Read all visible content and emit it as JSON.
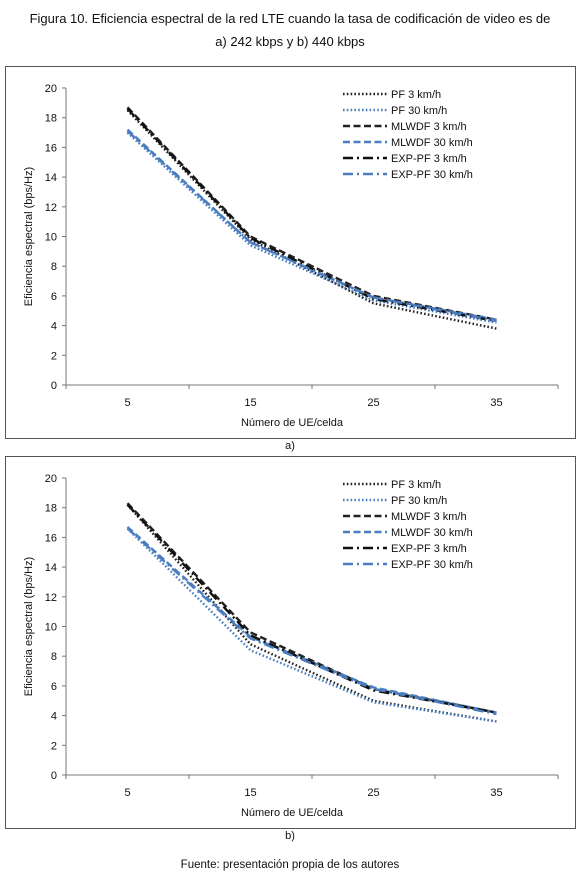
{
  "figure": {
    "title_line1": "Figura 10. Eficiencia espectral de la red LTE cuando la tasa de codificación de video es de",
    "title_line2": "a) 242 kbps y b) 440 kbps",
    "source": "Fuente: presentación propia de los autores"
  },
  "chart_data": [
    {
      "type": "line",
      "panel_label": "a)",
      "xlabel": "Número de UE/celda",
      "ylabel": "Eficiencia espectral (bps/Hz)",
      "x": [
        5,
        15,
        25,
        35
      ],
      "x_ticks": [
        "5",
        "15",
        "25",
        "35"
      ],
      "y_ticks": [
        "0",
        "2",
        "4",
        "6",
        "8",
        "10",
        "12",
        "14",
        "16",
        "18",
        "20"
      ],
      "ylim": [
        0,
        20
      ],
      "grid": false,
      "legend_position": "top-right",
      "series": [
        {
          "name": "PF 3 km/h",
          "values": [
            18.5,
            9.8,
            5.5,
            3.8
          ],
          "color": "#222222",
          "dash": "dotted"
        },
        {
          "name": "PF 30 km/h",
          "values": [
            17.0,
            9.4,
            5.7,
            4.2
          ],
          "color": "#4a7ec0",
          "dash": "dotted"
        },
        {
          "name": "MLWDF 3 km/h",
          "values": [
            18.7,
            10.0,
            6.0,
            4.4
          ],
          "color": "#222222",
          "dash": "dashed"
        },
        {
          "name": "MLWDF 30 km/h",
          "values": [
            17.2,
            9.6,
            5.9,
            4.4
          ],
          "color": "#4a7ec0",
          "dash": "dashed"
        },
        {
          "name": "EXP-PF 3 km/h",
          "values": [
            18.6,
            9.9,
            5.8,
            4.3
          ],
          "color": "#111111",
          "dash": "dashdot"
        },
        {
          "name": "EXP-PF 30 km/h",
          "values": [
            17.1,
            9.6,
            5.9,
            4.3
          ],
          "color": "#4a7ec0",
          "dash": "dashdot"
        }
      ]
    },
    {
      "type": "line",
      "panel_label": "b)",
      "xlabel": "Número de UE/celda",
      "ylabel": "Eficiencia espectral (bps/Hz)",
      "x": [
        5,
        15,
        25,
        35
      ],
      "x_ticks": [
        "5",
        "15",
        "25",
        "35"
      ],
      "y_ticks": [
        "0",
        "2",
        "4",
        "6",
        "8",
        "10",
        "12",
        "14",
        "16",
        "18",
        "20"
      ],
      "ylim": [
        0,
        20
      ],
      "grid": false,
      "legend_position": "top-right",
      "series": [
        {
          "name": "PF 3 km/h",
          "values": [
            18.2,
            8.8,
            5.0,
            3.6
          ],
          "color": "#222222",
          "dash": "dotted"
        },
        {
          "name": "PF 30 km/h",
          "values": [
            16.6,
            8.4,
            4.9,
            3.6
          ],
          "color": "#4a7ec0",
          "dash": "dotted"
        },
        {
          "name": "MLWDF 3 km/h",
          "values": [
            18.3,
            9.6,
            5.8,
            4.2
          ],
          "color": "#222222",
          "dash": "dashed"
        },
        {
          "name": "MLWDF 30 km/h",
          "values": [
            16.7,
            9.3,
            5.9,
            4.2
          ],
          "color": "#4a7ec0",
          "dash": "dashed"
        },
        {
          "name": "EXP-PF 3 km/h",
          "values": [
            18.2,
            9.4,
            5.7,
            4.2
          ],
          "color": "#111111",
          "dash": "dashdot"
        },
        {
          "name": "EXP-PF 30 km/h",
          "values": [
            16.6,
            9.2,
            5.8,
            4.1
          ],
          "color": "#4a7ec0",
          "dash": "dashdot"
        }
      ]
    }
  ]
}
